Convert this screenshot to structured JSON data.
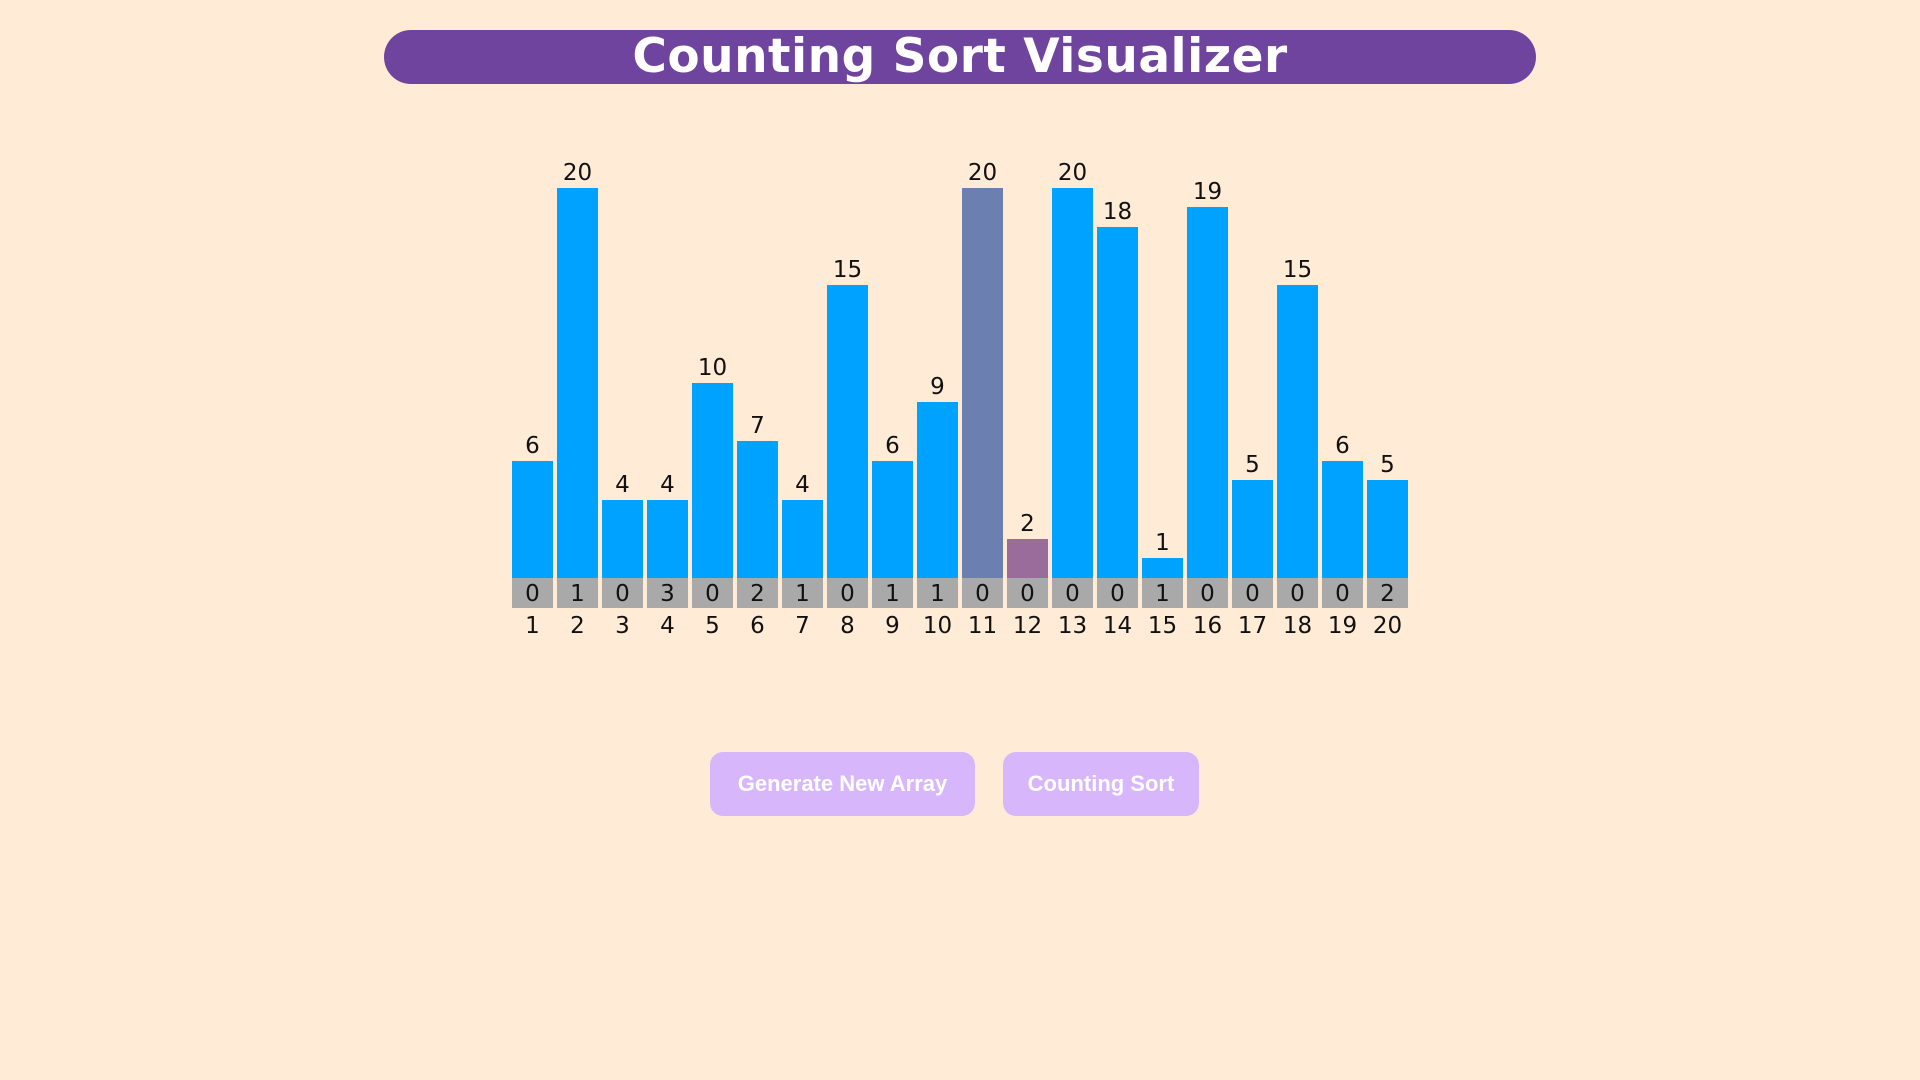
{
  "header": {
    "title": "Counting Sort Visualizer"
  },
  "colors": {
    "background": "#ffebd6",
    "title_bar": "#6e449e",
    "bar_default": "#00a2ff",
    "bar_current": "#6c7fb1",
    "bar_compare": "#9a6c9b",
    "count_cell": "#a9a9a9",
    "button": "#d8b6fb"
  },
  "chart_data": {
    "type": "bar",
    "categories": [
      "1",
      "2",
      "3",
      "4",
      "5",
      "6",
      "7",
      "8",
      "9",
      "10",
      "11",
      "12",
      "13",
      "14",
      "15",
      "16",
      "17",
      "18",
      "19",
      "20"
    ],
    "values": [
      6,
      20,
      4,
      4,
      10,
      7,
      4,
      15,
      6,
      9,
      20,
      2,
      20,
      18,
      1,
      19,
      5,
      15,
      6,
      5
    ],
    "counts": [
      0,
      1,
      0,
      3,
      0,
      2,
      1,
      0,
      1,
      1,
      0,
      0,
      0,
      0,
      1,
      0,
      0,
      0,
      0,
      2
    ],
    "highlight_current_index": 10,
    "highlight_compare_index": 11,
    "ylim": [
      0,
      20
    ]
  },
  "controls": {
    "generate_label": "Generate New Array",
    "sort_label": "Counting Sort"
  }
}
